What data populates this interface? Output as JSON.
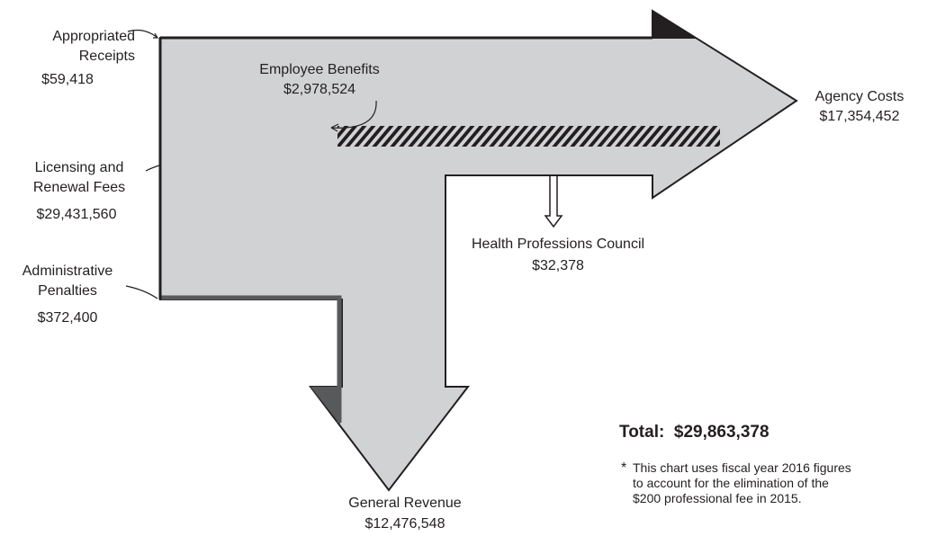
{
  "sources": [
    {
      "label": "Appropriated Receipts",
      "amount": "$59,418"
    },
    {
      "label": "Licensing and Renewal Fees",
      "amount": "$29,431,560"
    },
    {
      "label": "Administrative Penalties",
      "amount": "$372,400"
    }
  ],
  "outflows": [
    {
      "label": "Employee Benefits",
      "amount": "$2,978,524"
    },
    {
      "label": "Agency Costs",
      "amount": "$17,354,452"
    },
    {
      "label": "Health Professions Council",
      "amount": "$32,378"
    },
    {
      "label": "General Revenue",
      "amount": "$12,476,548"
    }
  ],
  "total": {
    "label": "Total:",
    "amount": "$29,863,378"
  },
  "footnote": {
    "marker": "*",
    "text": "This chart uses fiscal year 2016 figures to account for the elimination of the $200 professional fee in 2015."
  }
}
